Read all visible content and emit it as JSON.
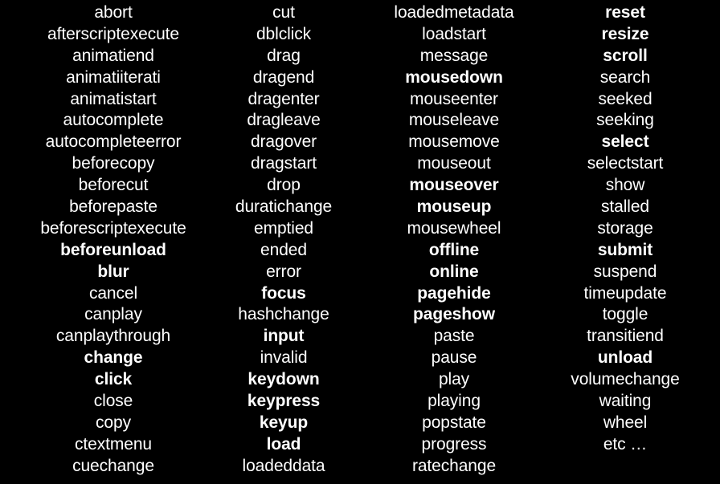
{
  "columns": [
    {
      "items": [
        {
          "label": "abort",
          "bold": false
        },
        {
          "label": "afterscriptexecute",
          "bold": false
        },
        {
          "label": "animatiend",
          "bold": false
        },
        {
          "label": "animatiiterati",
          "bold": false
        },
        {
          "label": "animatistart",
          "bold": false
        },
        {
          "label": "autocomplete",
          "bold": false
        },
        {
          "label": "autocompleteerror",
          "bold": false
        },
        {
          "label": "beforecopy",
          "bold": false
        },
        {
          "label": "beforecut",
          "bold": false
        },
        {
          "label": "beforepaste",
          "bold": false
        },
        {
          "label": "beforescriptexecute",
          "bold": false
        },
        {
          "label": "beforeunload",
          "bold": true
        },
        {
          "label": "blur",
          "bold": true
        },
        {
          "label": "cancel",
          "bold": false
        },
        {
          "label": "canplay",
          "bold": false
        },
        {
          "label": "canplaythrough",
          "bold": false
        },
        {
          "label": "change",
          "bold": true
        },
        {
          "label": "click",
          "bold": true
        },
        {
          "label": "close",
          "bold": false
        },
        {
          "label": "copy",
          "bold": false
        },
        {
          "label": "ctextmenu",
          "bold": false
        },
        {
          "label": "cuechange",
          "bold": false
        }
      ]
    },
    {
      "items": [
        {
          "label": "cut",
          "bold": false
        },
        {
          "label": "dblclick",
          "bold": false
        },
        {
          "label": "drag",
          "bold": false
        },
        {
          "label": "dragend",
          "bold": false
        },
        {
          "label": "dragenter",
          "bold": false
        },
        {
          "label": "dragleave",
          "bold": false
        },
        {
          "label": "dragover",
          "bold": false
        },
        {
          "label": "dragstart",
          "bold": false
        },
        {
          "label": "drop",
          "bold": false
        },
        {
          "label": "duratichange",
          "bold": false
        },
        {
          "label": "emptied",
          "bold": false
        },
        {
          "label": "ended",
          "bold": false
        },
        {
          "label": "error",
          "bold": false
        },
        {
          "label": "focus",
          "bold": true
        },
        {
          "label": "hashchange",
          "bold": false
        },
        {
          "label": "input",
          "bold": true
        },
        {
          "label": "invalid",
          "bold": false
        },
        {
          "label": "keydown",
          "bold": true
        },
        {
          "label": "keypress",
          "bold": true
        },
        {
          "label": "keyup",
          "bold": true
        },
        {
          "label": "load",
          "bold": true
        },
        {
          "label": "loadeddata",
          "bold": false
        }
      ]
    },
    {
      "items": [
        {
          "label": "loadedmetadata",
          "bold": false
        },
        {
          "label": "loadstart",
          "bold": false
        },
        {
          "label": "message",
          "bold": false
        },
        {
          "label": "mousedown",
          "bold": true
        },
        {
          "label": "mouseenter",
          "bold": false
        },
        {
          "label": "mouseleave",
          "bold": false
        },
        {
          "label": "mousemove",
          "bold": false
        },
        {
          "label": "mouseout",
          "bold": false
        },
        {
          "label": "mouseover",
          "bold": true
        },
        {
          "label": "mouseup",
          "bold": true
        },
        {
          "label": "mousewheel",
          "bold": false
        },
        {
          "label": "offline",
          "bold": true
        },
        {
          "label": "online",
          "bold": true
        },
        {
          "label": "pagehide",
          "bold": true
        },
        {
          "label": "pageshow",
          "bold": true
        },
        {
          "label": "paste",
          "bold": false
        },
        {
          "label": "pause",
          "bold": false
        },
        {
          "label": "play",
          "bold": false
        },
        {
          "label": "playing",
          "bold": false
        },
        {
          "label": "popstate",
          "bold": false
        },
        {
          "label": "progress",
          "bold": false
        },
        {
          "label": "ratechange",
          "bold": false
        }
      ]
    },
    {
      "items": [
        {
          "label": "reset",
          "bold": true
        },
        {
          "label": "resize",
          "bold": true
        },
        {
          "label": "scroll",
          "bold": true
        },
        {
          "label": "search",
          "bold": false
        },
        {
          "label": "seeked",
          "bold": false
        },
        {
          "label": "seeking",
          "bold": false
        },
        {
          "label": "select",
          "bold": true
        },
        {
          "label": "selectstart",
          "bold": false
        },
        {
          "label": "show",
          "bold": false
        },
        {
          "label": "stalled",
          "bold": false
        },
        {
          "label": "storage",
          "bold": false
        },
        {
          "label": "submit",
          "bold": true
        },
        {
          "label": "suspend",
          "bold": false
        },
        {
          "label": "timeupdate",
          "bold": false
        },
        {
          "label": "toggle",
          "bold": false
        },
        {
          "label": "transitiend",
          "bold": false
        },
        {
          "label": "unload",
          "bold": true
        },
        {
          "label": "volumechange",
          "bold": false
        },
        {
          "label": "waiting",
          "bold": false
        },
        {
          "label": "wheel",
          "bold": false
        },
        {
          "label": "etc …",
          "bold": false
        }
      ]
    }
  ],
  "colors": {
    "background": "#000000",
    "text": "#ffffff"
  }
}
